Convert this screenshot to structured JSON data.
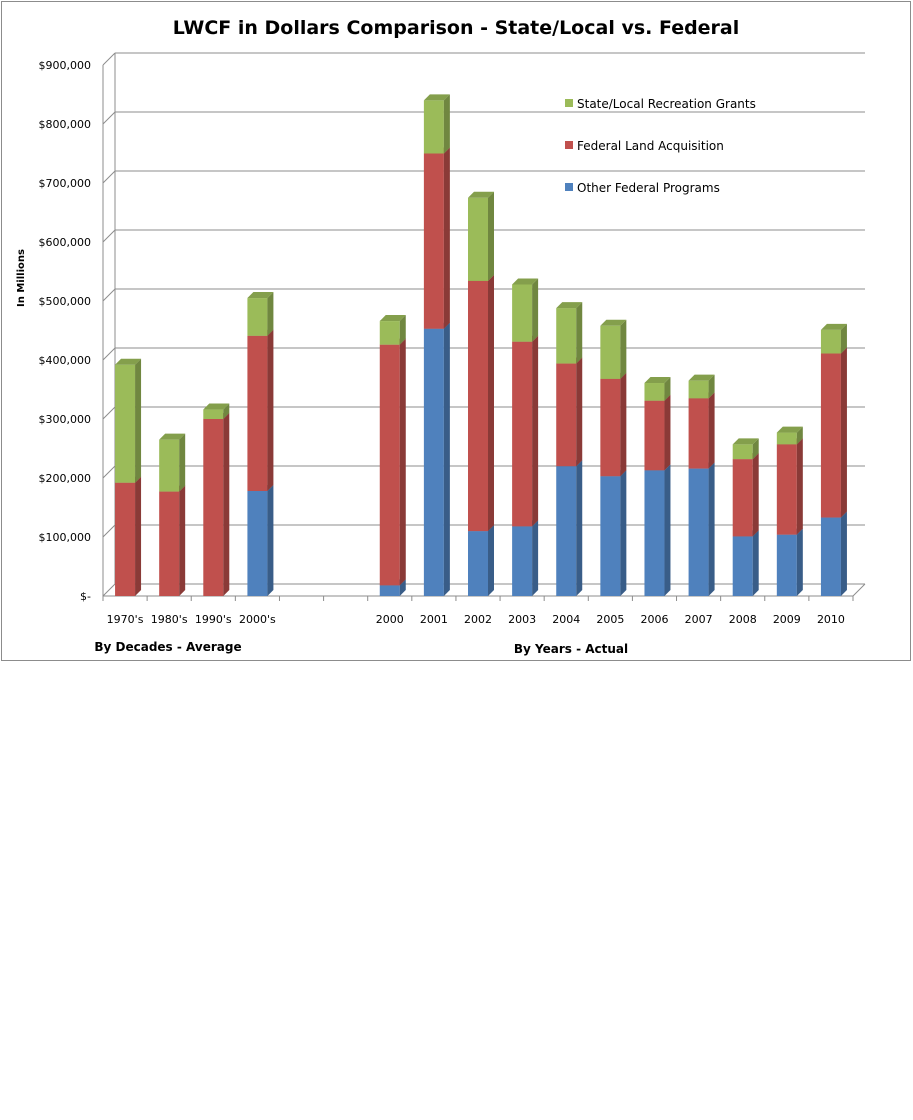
{
  "chart_data": {
    "type": "bar",
    "stacked": true,
    "title": "LWCF in Dollars Comparison - State/Local vs. Federal",
    "ylabel": "In Millions",
    "ylim": [
      0,
      900000
    ],
    "yticks": [
      {
        "value": 0,
        "label": "$-"
      },
      {
        "value": 100000,
        "label": "$100,000"
      },
      {
        "value": 200000,
        "label": "$200,000"
      },
      {
        "value": 300000,
        "label": "$300,000"
      },
      {
        "value": 400000,
        "label": "$400,000"
      },
      {
        "value": 500000,
        "label": "$500,000"
      },
      {
        "value": 600000,
        "label": "$600,000"
      },
      {
        "value": 700000,
        "label": "$700,000"
      },
      {
        "value": 800000,
        "label": "$800,000"
      },
      {
        "value": 900000,
        "label": "$900,000"
      }
    ],
    "grid": true,
    "legend_position": "top-right",
    "categories": [
      "1970's",
      "1980's",
      "1990's",
      "2000's",
      "",
      "",
      "2000",
      "2001",
      "2002",
      "2003",
      "2004",
      "2005",
      "2006",
      "2007",
      "2008",
      "2009",
      "2010"
    ],
    "series": [
      {
        "name": "Other Federal Programs",
        "color": "#4f81bd",
        "values": [
          0,
          0,
          0,
          178000,
          0,
          0,
          18000,
          453000,
          110000,
          118000,
          220000,
          203000,
          213000,
          216000,
          101000,
          104000,
          133000
        ]
      },
      {
        "name": "Federal Land Acquisition",
        "color": "#c0504d",
        "values": [
          192000,
          177000,
          300000,
          263000,
          0,
          0,
          408000,
          297000,
          424000,
          313000,
          174000,
          165000,
          118000,
          119000,
          131000,
          153000,
          278000
        ]
      },
      {
        "name": "State/Local Recreation Grants",
        "color": "#9bbb59",
        "values": [
          200000,
          88000,
          16000,
          64000,
          0,
          0,
          40000,
          90000,
          141000,
          97000,
          94000,
          90000,
          30000,
          30000,
          25000,
          20000,
          40000
        ]
      }
    ],
    "group_labels": [
      "By Decades - Average",
      "By Years - Actual"
    ]
  }
}
